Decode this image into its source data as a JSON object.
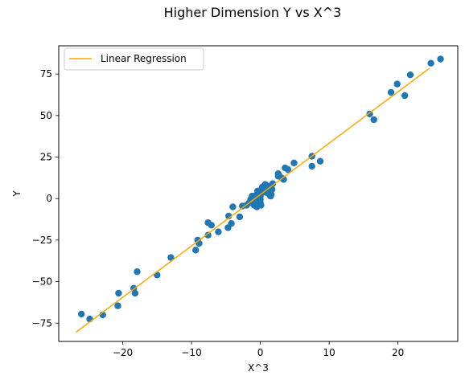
{
  "chart_data": {
    "type": "scatter",
    "title": "Higher Dimension Y vs X^3",
    "xlabel": "X^3",
    "ylabel": "Y",
    "xlim": [
      -29.3,
      28.7
    ],
    "ylim": [
      -86.0,
      92.0
    ],
    "x_ticks": [
      -20,
      -10,
      0,
      10,
      20
    ],
    "y_ticks": [
      -75,
      -50,
      -25,
      0,
      25,
      50,
      75
    ],
    "x_tick_labels": [
      "−20",
      "−10",
      "0",
      "10",
      "20"
    ],
    "y_tick_labels": [
      "−75",
      "−50",
      "−25",
      "0",
      "25",
      "50",
      "75"
    ],
    "grid": false,
    "legend_position": "upper-left",
    "legend_entries": [
      "Linear Regression"
    ],
    "colors": {
      "points": "#1f77b4",
      "line": "#ffa500",
      "axes": "#000000",
      "legend_border": "#cccccc"
    },
    "series": [
      {
        "name": "",
        "kind": "scatter",
        "points": [
          [
            -26.0,
            -69.5
          ],
          [
            -24.8,
            -72.5
          ],
          [
            -22.9,
            -70.0
          ],
          [
            -20.6,
            -57.0
          ],
          [
            -20.7,
            -64.5
          ],
          [
            -18.4,
            -54.0
          ],
          [
            -18.2,
            -57.0
          ],
          [
            -17.9,
            -44.0
          ],
          [
            -15.0,
            -46.0
          ],
          [
            -13.0,
            -35.5
          ],
          [
            -9.4,
            -31.0
          ],
          [
            -9.1,
            -25.0
          ],
          [
            -8.9,
            -27.0
          ],
          [
            -7.6,
            -22.0
          ],
          [
            -7.6,
            -14.5
          ],
          [
            -7.1,
            -16.0
          ],
          [
            -6.1,
            -20.0
          ],
          [
            -4.7,
            -17.5
          ],
          [
            -4.6,
            -10.5
          ],
          [
            -4.2,
            -15.0
          ],
          [
            -4.0,
            -5.0
          ],
          [
            -3.0,
            -11.0
          ],
          [
            -2.6,
            -4.5
          ],
          [
            -2.0,
            -4.0
          ],
          [
            -1.6,
            -2.5
          ],
          [
            -1.4,
            -0.5
          ],
          [
            -1.2,
            1.5
          ],
          [
            -1.0,
            -2.0
          ],
          [
            -0.9,
            -4.0
          ],
          [
            -0.6,
            -3.5
          ],
          [
            -0.5,
            -5.0
          ],
          [
            -0.6,
            2.0
          ],
          [
            -0.4,
            4.5
          ],
          [
            -0.3,
            -1.0
          ],
          [
            -0.2,
            3.0
          ],
          [
            -0.1,
            0.5
          ],
          [
            0.0,
            5.0
          ],
          [
            0.0,
            1.5
          ],
          [
            0.0,
            -0.5
          ],
          [
            0.0,
            -2.5
          ],
          [
            0.1,
            -4.0
          ],
          [
            0.2,
            3.5
          ],
          [
            0.3,
            7.0
          ],
          [
            0.5,
            6.0
          ],
          [
            0.6,
            4.0
          ],
          [
            0.7,
            8.5
          ],
          [
            1.0,
            3.5
          ],
          [
            1.1,
            5.0
          ],
          [
            1.2,
            7.5
          ],
          [
            1.4,
            2.0
          ],
          [
            1.5,
            1.5
          ],
          [
            1.6,
            2.5
          ],
          [
            1.7,
            5.5
          ],
          [
            1.8,
            9.0
          ],
          [
            2.6,
            13.5
          ],
          [
            2.6,
            15.0
          ],
          [
            3.1,
            12.5
          ],
          [
            3.4,
            11.5
          ],
          [
            3.6,
            18.5
          ],
          [
            4.0,
            17.5
          ],
          [
            4.9,
            21.5
          ],
          [
            7.5,
            19.5
          ],
          [
            7.5,
            25.5
          ],
          [
            8.7,
            22.5
          ],
          [
            15.9,
            51.0
          ],
          [
            16.5,
            47.5
          ],
          [
            19.0,
            64.0
          ],
          [
            19.9,
            69.0
          ],
          [
            21.0,
            62.0
          ],
          [
            21.8,
            74.5
          ],
          [
            24.8,
            81.5
          ],
          [
            26.2,
            84.0
          ]
        ]
      },
      {
        "name": "Linear Regression",
        "kind": "line",
        "points": [
          [
            -26.8,
            -80.5
          ],
          [
            24.6,
            78.5
          ]
        ]
      }
    ]
  }
}
